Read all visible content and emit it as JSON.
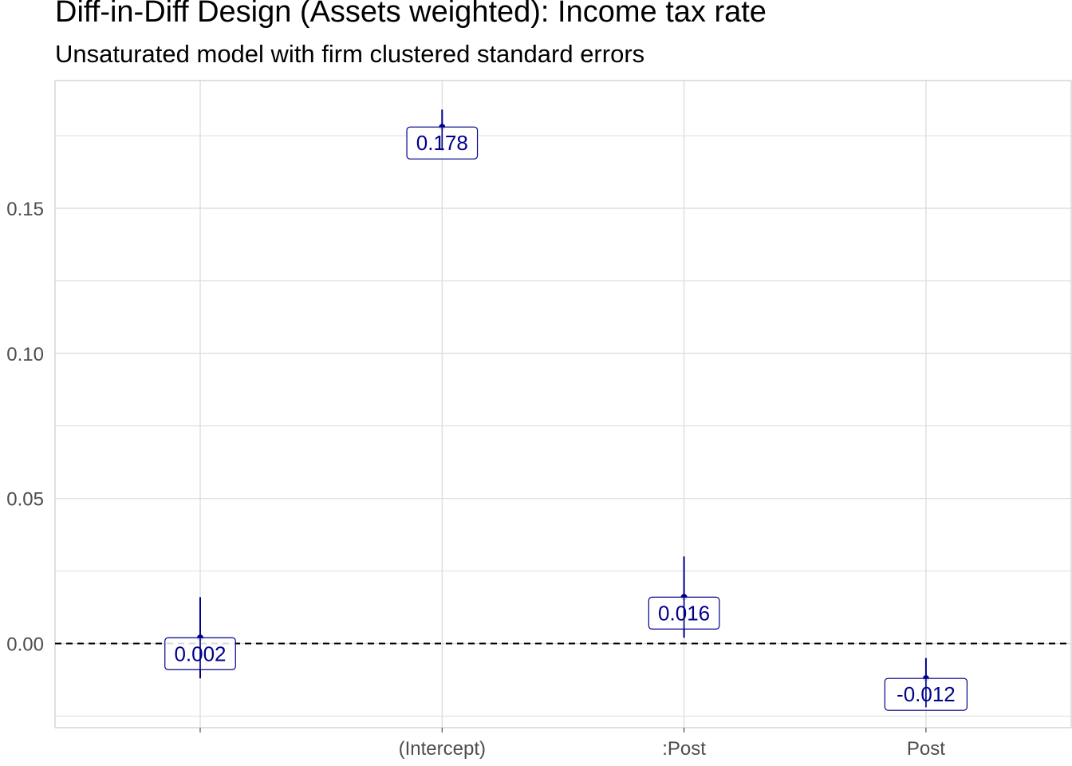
{
  "title": "Diff-in-Diff Design (Assets weighted): Income tax rate",
  "subtitle": "Unsaturated model with firm clustered standard errors",
  "colors": {
    "point": "#00008b",
    "grid": "#dedede",
    "axis_text": "#4d4d4d",
    "ref_line": "#000000"
  },
  "chart_data": {
    "type": "scatter",
    "title": "Diff-in-Diff Design (Assets weighted): Income tax rate",
    "subtitle": "Unsaturated model with firm clustered standard errors",
    "xlabel": "",
    "ylabel": "",
    "categories": [
      "",
      "(Intercept)",
      ":Post",
      "Post"
    ],
    "estimates": [
      0.002,
      0.178,
      0.016,
      -0.012
    ],
    "ci_lower": [
      -0.012,
      0.17,
      0.002,
      -0.022
    ],
    "ci_upper": [
      0.016,
      0.184,
      0.03,
      -0.005
    ],
    "data_labels": [
      "0.002",
      "0.178",
      "0.016",
      "-0.012"
    ],
    "yticks": [
      0.0,
      0.05,
      0.1,
      0.15
    ],
    "ytick_labels": [
      "0.00",
      "0.05",
      "0.10",
      "0.15"
    ],
    "ylim": [
      -0.029,
      0.194
    ],
    "reference_line": 0,
    "reference_line_style": "dashed",
    "grid": true,
    "legend": "none"
  }
}
